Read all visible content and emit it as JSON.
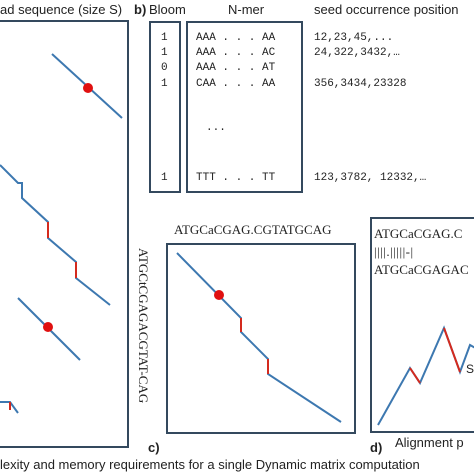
{
  "panel_a": {
    "title": "ad sequence (size S)"
  },
  "panel_b": {
    "label": "b)",
    "bloom_header": "Bloom",
    "nmer_header": "N-mer",
    "seed_header": "seed occurrence position",
    "rows": [
      {
        "bloom": "1",
        "nmer": "AAA . . . AA",
        "seeds": "12,23,45,..."
      },
      {
        "bloom": "1",
        "nmer": "AAA . . . AC",
        "seeds": "24,322,3432,…"
      },
      {
        "bloom": "0",
        "nmer": "AAA . . . AT",
        "seeds": ""
      },
      {
        "bloom": "1",
        "nmer": "CAA . . . AA",
        "seeds": "356,3434,23328"
      }
    ],
    "ellipsis": "...",
    "last_row": {
      "bloom": "1",
      "nmer": "TTT . . . TT",
      "seeds": "123,3782, 12332,…"
    }
  },
  "panel_c": {
    "label": "c)",
    "top_seq": "ATGCaCGAG.CGTATGCAG",
    "side_seq": "ATGCtCGAGACGTAT-CAG"
  },
  "panel_d": {
    "label": "d)",
    "align_top": "ATGCaCGAG.C",
    "align_mid": "||||.|||||-|",
    "align_bot": "ATGCaCGAGAC",
    "axis_label": "Alignment p",
    "partial_glyph": "S"
  },
  "caption": "lexity  and memory requirements for a single Dynamic matrix computation",
  "colors": {
    "path": "#3d78b0",
    "gap": "#d42a1e",
    "seed": "#e01010",
    "box": "#34495e"
  }
}
